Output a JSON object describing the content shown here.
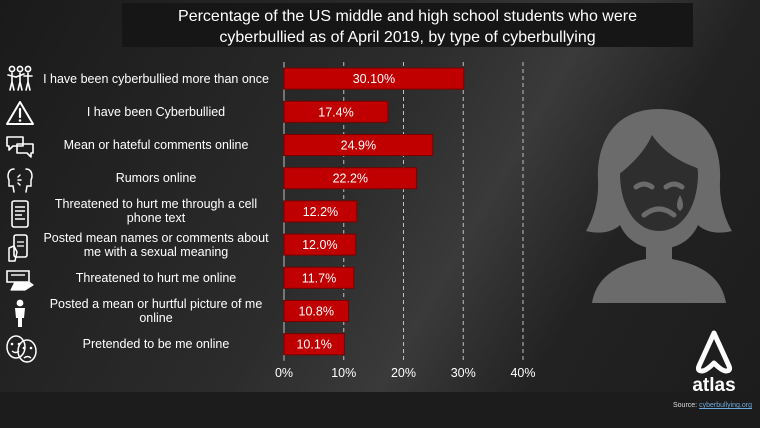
{
  "title_lines": [
    "Percentage of the US middle and high school students who were",
    "cyberbullied as of April 2019, by type of cyberbullying"
  ],
  "colors": {
    "bar": "#c00000",
    "bar_border": "#7a0000",
    "grid": "#bfbfbf",
    "background": "#262626"
  },
  "chart_data": {
    "type": "bar",
    "orientation": "horizontal",
    "categories": [
      "I have been cyberbullied more than once",
      "I have been Cyberbullied",
      "Mean or hateful comments online",
      "Rumors online",
      "Threatened to hurt me through a cell phone text",
      "Posted mean names or comments about me with a sexual meaning",
      "Threatened to hurt me online",
      "Posted a mean or hurtful picture of me online",
      "Pretended to be me online"
    ],
    "label_lines": [
      [
        "I have been cyberbullied more than once"
      ],
      [
        "I have been Cyberbullied"
      ],
      [
        "Mean or hateful comments online"
      ],
      [
        "Rumors online"
      ],
      [
        "Threatened to hurt me through a cell",
        "phone text"
      ],
      [
        "Posted mean names or comments about",
        "me with a sexual meaning"
      ],
      [
        "Threatened to hurt me online"
      ],
      [
        "Posted a mean or hurtful picture of me",
        "online"
      ],
      [
        "Pretended to be me online"
      ]
    ],
    "values": [
      30.1,
      17.4,
      24.9,
      22.2,
      12.2,
      12.0,
      11.7,
      10.8,
      10.1
    ],
    "data_labels": [
      "30.10%",
      "17.4%",
      "24.9%",
      "22.2%",
      "12.2%",
      "12.0%",
      "11.7%",
      "10.8%",
      "10.1%"
    ],
    "xlim": [
      0,
      40
    ],
    "xticks": [
      0,
      10,
      20,
      30,
      40
    ],
    "xtick_labels": [
      "0%",
      "10%",
      "20%",
      "30%",
      "40%"
    ],
    "grid": "vertical dashed",
    "legend": "none"
  },
  "branding": {
    "logo_text": "atlas"
  },
  "source": {
    "prefix": "Source:",
    "link_text": "cyberbullying.org"
  },
  "icons": [
    "crowd-icon",
    "warning-icon",
    "chat-bubbles-icon",
    "whisper-faces-icon",
    "phone-message-icon",
    "phone-hand-icon",
    "laptop-hand-icon",
    "person-icon",
    "masks-icon",
    "sad-girl-icon",
    "atlas-logo-icon"
  ]
}
